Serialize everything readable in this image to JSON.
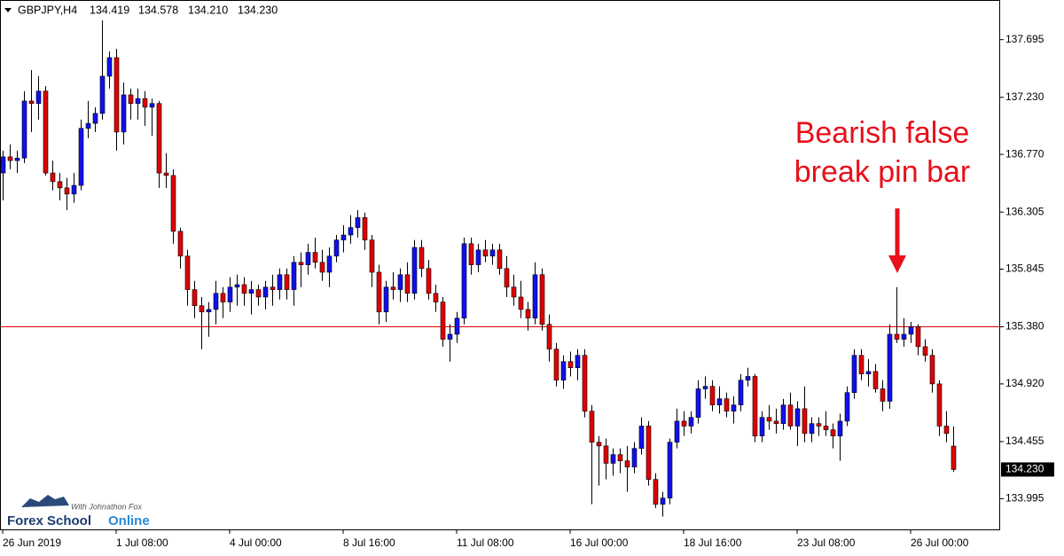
{
  "chart_data": {
    "type": "candlestick",
    "symbol": "GBPJPY,H4",
    "header_values": [
      "134.419",
      "134.578",
      "134.210",
      "134.230"
    ],
    "up_color": "#1010f0",
    "down_color": "#e00000",
    "wick_color": "#000000",
    "ylim": [
      133.74,
      138.0
    ],
    "yticks": [
      137.695,
      {
        "value": 137.23,
        "label": "137.230"
      },
      {
        "value": 136.77,
        "label": "136.770"
      },
      136.305,
      135.845,
      {
        "value": 135.38,
        "label": "135.380"
      },
      {
        "value": 134.92,
        "label": "134.920"
      },
      134.455,
      133.995
    ],
    "current_price": {
      "value": 134.23,
      "label": "134.230"
    },
    "hline": {
      "value": 135.38,
      "color": "#e00000"
    },
    "xticks": [
      "26 Jun 2019",
      "1 Jul 08:00",
      "4 Jul 00:00",
      "8 Jul 16:00",
      "11 Jul 08:00",
      "16 Jul 00:00",
      "18 Jul 16:00",
      "23 Jul 08:00",
      "26 Jul 00:00"
    ],
    "annotation": [
      "Bearish false",
      "break pin bar"
    ],
    "logo": {
      "tagline": "With Johnathon Fox",
      "name1": "Forex School",
      "name2": "Online"
    },
    "ohlc": [
      [
        136.62,
        136.8,
        136.4,
        136.75
      ],
      [
        136.75,
        136.85,
        136.65,
        136.72
      ],
      [
        136.72,
        136.8,
        136.62,
        136.74
      ],
      [
        136.74,
        137.28,
        136.7,
        137.2
      ],
      [
        137.2,
        137.45,
        136.95,
        137.18
      ],
      [
        137.18,
        137.4,
        137.05,
        137.28
      ],
      [
        137.28,
        137.32,
        136.6,
        136.62
      ],
      [
        136.62,
        136.72,
        136.48,
        136.55
      ],
      [
        136.55,
        136.62,
        136.4,
        136.5
      ],
      [
        136.5,
        136.58,
        136.32,
        136.45
      ],
      [
        136.45,
        136.62,
        136.38,
        136.52
      ],
      [
        136.52,
        137.05,
        136.48,
        136.98
      ],
      [
        136.98,
        137.2,
        136.9,
        137.02
      ],
      [
        137.02,
        137.15,
        136.95,
        137.1
      ],
      [
        137.1,
        137.85,
        137.05,
        137.4
      ],
      [
        137.4,
        137.6,
        137.3,
        137.55
      ],
      [
        137.55,
        137.62,
        136.8,
        136.95
      ],
      [
        136.95,
        137.35,
        136.85,
        137.25
      ],
      [
        137.25,
        137.3,
        137.05,
        137.18
      ],
      [
        137.18,
        137.3,
        137.05,
        137.22
      ],
      [
        137.22,
        137.28,
        137.0,
        137.15
      ],
      [
        137.15,
        137.22,
        136.92,
        137.18
      ],
      [
        137.18,
        137.2,
        136.5,
        136.62
      ],
      [
        136.62,
        136.78,
        136.5,
        136.6
      ],
      [
        136.6,
        136.65,
        136.05,
        136.15
      ],
      [
        136.15,
        136.18,
        135.85,
        135.95
      ],
      [
        135.95,
        136.0,
        135.55,
        135.68
      ],
      [
        135.68,
        135.75,
        135.45,
        135.55
      ],
      [
        135.55,
        135.62,
        135.2,
        135.5
      ],
      [
        135.5,
        135.58,
        135.3,
        135.52
      ],
      [
        135.52,
        135.75,
        135.4,
        135.65
      ],
      [
        135.65,
        135.7,
        135.45,
        135.58
      ],
      [
        135.58,
        135.78,
        135.5,
        135.7
      ],
      [
        135.7,
        135.8,
        135.55,
        135.72
      ],
      [
        135.72,
        135.78,
        135.55,
        135.65
      ],
      [
        135.65,
        135.75,
        135.48,
        135.68
      ],
      [
        135.68,
        135.72,
        135.55,
        135.62
      ],
      [
        135.62,
        135.75,
        135.52,
        135.7
      ],
      [
        135.7,
        135.8,
        135.55,
        135.68
      ],
      [
        135.68,
        135.85,
        135.6,
        135.8
      ],
      [
        135.8,
        135.85,
        135.6,
        135.68
      ],
      [
        135.68,
        135.95,
        135.55,
        135.9
      ],
      [
        135.9,
        135.98,
        135.7,
        135.88
      ],
      [
        135.88,
        136.05,
        135.8,
        135.98
      ],
      [
        135.98,
        136.1,
        135.85,
        135.9
      ],
      [
        135.9,
        136.0,
        135.75,
        135.82
      ],
      [
        135.82,
        136.02,
        135.7,
        135.95
      ],
      [
        135.95,
        136.12,
        135.9,
        136.08
      ],
      [
        136.08,
        136.2,
        135.98,
        136.12
      ],
      [
        136.12,
        136.28,
        136.05,
        136.18
      ],
      [
        136.18,
        136.32,
        136.1,
        136.26
      ],
      [
        136.26,
        136.3,
        136.0,
        136.08
      ],
      [
        136.08,
        136.12,
        135.7,
        135.82
      ],
      [
        135.82,
        135.88,
        135.4,
        135.5
      ],
      [
        135.5,
        135.75,
        135.42,
        135.7
      ],
      [
        135.7,
        135.82,
        135.6,
        135.68
      ],
      [
        135.68,
        135.85,
        135.58,
        135.8
      ],
      [
        135.8,
        135.9,
        135.58,
        135.65
      ],
      [
        135.65,
        136.08,
        135.6,
        136.02
      ],
      [
        136.02,
        136.08,
        135.78,
        135.85
      ],
      [
        135.85,
        135.92,
        135.6,
        135.65
      ],
      [
        135.65,
        135.72,
        135.5,
        135.58
      ],
      [
        135.58,
        135.62,
        135.22,
        135.28
      ],
      [
        135.28,
        135.4,
        135.1,
        135.32
      ],
      [
        135.32,
        135.5,
        135.25,
        135.45
      ],
      [
        135.45,
        136.1,
        135.4,
        136.05
      ],
      [
        136.05,
        136.1,
        135.8,
        135.88
      ],
      [
        135.88,
        136.05,
        135.82,
        136.0
      ],
      [
        136.0,
        136.08,
        135.9,
        135.95
      ],
      [
        135.95,
        136.05,
        135.88,
        136.0
      ],
      [
        136.0,
        136.05,
        135.8,
        135.85
      ],
      [
        135.85,
        135.95,
        135.62,
        135.7
      ],
      [
        135.7,
        135.8,
        135.55,
        135.62
      ],
      [
        135.62,
        135.75,
        135.45,
        135.52
      ],
      [
        135.52,
        135.58,
        135.35,
        135.45
      ],
      [
        135.45,
        135.9,
        135.4,
        135.8
      ],
      [
        135.8,
        135.85,
        135.35,
        135.4
      ],
      [
        135.4,
        135.48,
        135.1,
        135.2
      ],
      [
        135.2,
        135.25,
        134.9,
        134.95
      ],
      [
        134.95,
        135.15,
        134.88,
        135.1
      ],
      [
        135.1,
        135.18,
        134.98,
        135.05
      ],
      [
        135.05,
        135.2,
        134.95,
        135.15
      ],
      [
        135.15,
        135.2,
        134.65,
        134.7
      ],
      [
        134.7,
        134.75,
        133.95,
        134.45
      ],
      [
        134.45,
        134.5,
        134.1,
        134.42
      ],
      [
        134.42,
        134.48,
        134.15,
        134.28
      ],
      [
        134.28,
        134.4,
        134.18,
        134.35
      ],
      [
        134.35,
        134.4,
        134.2,
        134.3
      ],
      [
        134.3,
        134.42,
        134.05,
        134.25
      ],
      [
        134.25,
        134.45,
        134.2,
        134.4
      ],
      [
        134.4,
        134.65,
        134.35,
        134.58
      ],
      [
        134.58,
        134.62,
        134.1,
        134.15
      ],
      [
        134.15,
        134.2,
        133.92,
        133.95
      ],
      [
        133.95,
        134.05,
        133.85,
        134.0
      ],
      [
        134.0,
        134.48,
        133.95,
        134.45
      ],
      [
        134.45,
        134.72,
        134.4,
        134.62
      ],
      [
        134.62,
        134.7,
        134.5,
        134.58
      ],
      [
        134.58,
        134.7,
        134.52,
        134.65
      ],
      [
        134.65,
        134.95,
        134.6,
        134.88
      ],
      [
        134.88,
        134.98,
        134.8,
        134.9
      ],
      [
        134.9,
        134.95,
        134.7,
        134.75
      ],
      [
        134.75,
        134.9,
        134.68,
        134.8
      ],
      [
        134.8,
        134.85,
        134.65,
        134.7
      ],
      [
        134.7,
        134.82,
        134.6,
        134.75
      ],
      [
        134.75,
        135.0,
        134.7,
        134.95
      ],
      [
        134.95,
        135.05,
        134.9,
        134.98
      ],
      [
        134.98,
        135.0,
        134.45,
        134.5
      ],
      [
        134.5,
        134.7,
        134.45,
        134.65
      ],
      [
        134.65,
        134.75,
        134.55,
        134.62
      ],
      [
        134.62,
        134.72,
        134.52,
        134.6
      ],
      [
        134.6,
        134.8,
        134.55,
        134.75
      ],
      [
        134.75,
        134.85,
        134.55,
        134.58
      ],
      [
        134.58,
        134.78,
        134.42,
        134.72
      ],
      [
        134.72,
        134.9,
        134.45,
        134.52
      ],
      [
        134.52,
        134.65,
        134.45,
        134.6
      ],
      [
        134.6,
        134.65,
        134.5,
        134.58
      ],
      [
        134.58,
        134.7,
        134.5,
        134.55
      ],
      [
        134.55,
        134.6,
        134.4,
        134.5
      ],
      [
        134.5,
        134.68,
        134.3,
        134.62
      ],
      [
        134.62,
        134.9,
        134.58,
        134.85
      ],
      [
        134.85,
        135.2,
        134.8,
        135.15
      ],
      [
        135.15,
        135.2,
        134.95,
        135.0
      ],
      [
        135.0,
        135.12,
        134.9,
        135.02
      ],
      [
        135.02,
        135.08,
        134.85,
        134.88
      ],
      [
        134.88,
        134.95,
        134.7,
        134.78
      ],
      [
        134.78,
        135.4,
        134.72,
        135.32
      ],
      [
        135.32,
        135.7,
        135.25,
        135.28
      ],
      [
        135.28,
        135.45,
        135.22,
        135.32
      ],
      [
        135.32,
        135.42,
        135.25,
        135.38
      ],
      [
        135.38,
        135.4,
        135.15,
        135.22
      ],
      [
        135.22,
        135.28,
        135.1,
        135.15
      ],
      [
        135.15,
        135.2,
        134.85,
        134.92
      ],
      [
        134.92,
        134.95,
        134.5,
        134.58
      ],
      [
        134.58,
        134.7,
        134.45,
        134.52
      ],
      [
        134.419,
        134.578,
        134.21,
        134.23
      ]
    ]
  }
}
